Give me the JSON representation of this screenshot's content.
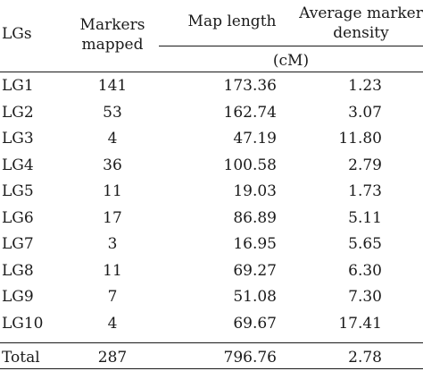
{
  "table": {
    "headers": {
      "lgs": "LGs",
      "markers_line1": "Markers",
      "markers_line2": "mapped",
      "map_length": "Map length",
      "density_line1": "Average marker",
      "density_line2": "density",
      "unit": "(cM)"
    },
    "rows": [
      {
        "lg": "LG1",
        "markers": "141",
        "length": "173.36",
        "density": "1.23"
      },
      {
        "lg": "LG2",
        "markers": "53",
        "length": "162.74",
        "density": "3.07"
      },
      {
        "lg": "LG3",
        "markers": "4",
        "length": "47.19",
        "density": "11.80"
      },
      {
        "lg": "LG4",
        "markers": "36",
        "length": "100.58",
        "density": "2.79"
      },
      {
        "lg": "LG5",
        "markers": "11",
        "length": "19.03",
        "density": "1.73"
      },
      {
        "lg": "LG6",
        "markers": "17",
        "length": "86.89",
        "density": "5.11"
      },
      {
        "lg": "LG7",
        "markers": "3",
        "length": "16.95",
        "density": "5.65"
      },
      {
        "lg": "LG8",
        "markers": "11",
        "length": "69.27",
        "density": "6.30"
      },
      {
        "lg": "LG9",
        "markers": "7",
        "length": "51.08",
        "density": "7.30"
      },
      {
        "lg": "LG10",
        "markers": "4",
        "length": "69.67",
        "density": "17.41"
      }
    ],
    "total": {
      "lg": "Total",
      "markers": "287",
      "length": "796.76",
      "density": "2.78"
    }
  }
}
